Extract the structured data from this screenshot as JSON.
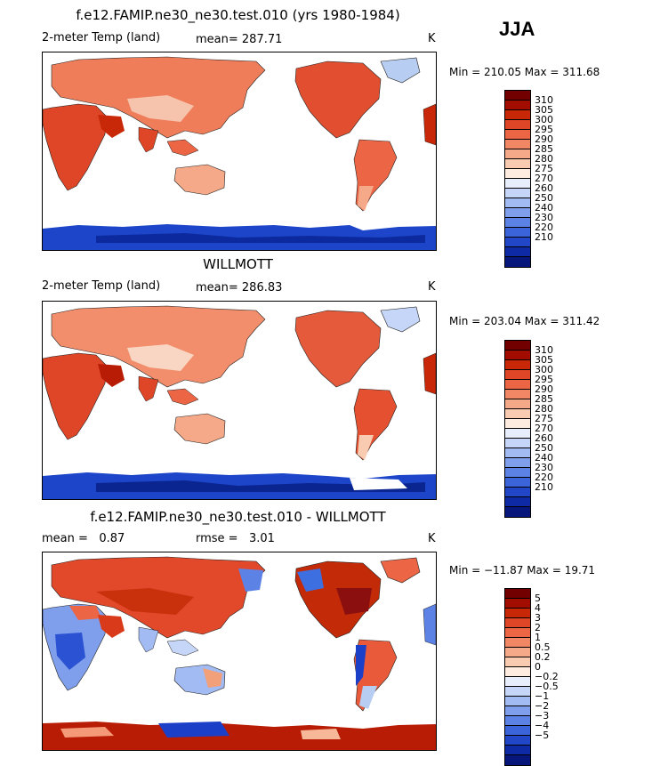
{
  "season": "JJA",
  "palette": {
    "ocean": "#ffffff",
    "warm_deep": "#8b0f0f",
    "warm": "#e0442a",
    "warm_light": "#f2a07a",
    "cool_light": "#b8cdf2",
    "cool": "#3e6fe0",
    "cool_deep": "#0a2fae"
  },
  "panels": [
    {
      "title": "f.e12.FAMIP.ne30_ne30.test.010 (yrs 1980-1984)",
      "left_label": "2-meter Temp (land)",
      "stat_label": "mean=",
      "stat_value": "287.71",
      "unit": "K",
      "minmax": "Min = 210.05 Max = 311.68",
      "colorbar": {
        "colors": [
          "#730000",
          "#a30d00",
          "#c82807",
          "#df4627",
          "#ec6545",
          "#f18765",
          "#f5a988",
          "#f9cbb0",
          "#fdecdf",
          "#e8eefc",
          "#c6d6f8",
          "#a2bbf2",
          "#7f9fec",
          "#5c82e6",
          "#3b64db",
          "#2146c8",
          "#0e2aa4",
          "#06167a"
        ],
        "labels": [
          "310",
          "305",
          "300",
          "295",
          "290",
          "285",
          "280",
          "275",
          "270",
          "260",
          "250",
          "240",
          "230",
          "220",
          "210"
        ]
      }
    },
    {
      "title": "WILLMOTT",
      "left_label": "2-meter Temp (land)",
      "stat_label": "mean=",
      "stat_value": "286.83",
      "unit": "K",
      "minmax": "Min = 203.04 Max = 311.42",
      "colorbar": {
        "colors": [
          "#730000",
          "#a30d00",
          "#c82807",
          "#df4627",
          "#ec6545",
          "#f18765",
          "#f5a988",
          "#f9cbb0",
          "#fdecdf",
          "#e8eefc",
          "#c6d6f8",
          "#a2bbf2",
          "#7f9fec",
          "#5c82e6",
          "#3b64db",
          "#2146c8",
          "#0e2aa4",
          "#06167a"
        ],
        "labels": [
          "310",
          "305",
          "300",
          "295",
          "290",
          "285",
          "280",
          "275",
          "270",
          "260",
          "250",
          "240",
          "230",
          "220",
          "210"
        ]
      }
    },
    {
      "title": "f.e12.FAMIP.ne30_ne30.test.010 - WILLMOTT",
      "left_label": "mean =",
      "left_value": "0.87",
      "stat_label": "rmse =",
      "stat_value": "3.01",
      "unit": "K",
      "minmax": "Min = −11.87 Max = 19.71",
      "colorbar": {
        "colors": [
          "#730000",
          "#a30d00",
          "#c82807",
          "#df4627",
          "#ec6545",
          "#f18765",
          "#f5a988",
          "#f9cbb0",
          "#fdecdf",
          "#e8eefc",
          "#c6d6f8",
          "#a2bbf2",
          "#7f9fec",
          "#5c82e6",
          "#3b64db",
          "#2146c8",
          "#0e2aa4",
          "#06167a"
        ],
        "labels": [
          "5",
          "4",
          "3",
          "2",
          "1",
          "0.5",
          "0.2",
          "0",
          "−0.2",
          "−0.5",
          "−1",
          "−2",
          "−3",
          "−4",
          "−5"
        ]
      }
    }
  ]
}
